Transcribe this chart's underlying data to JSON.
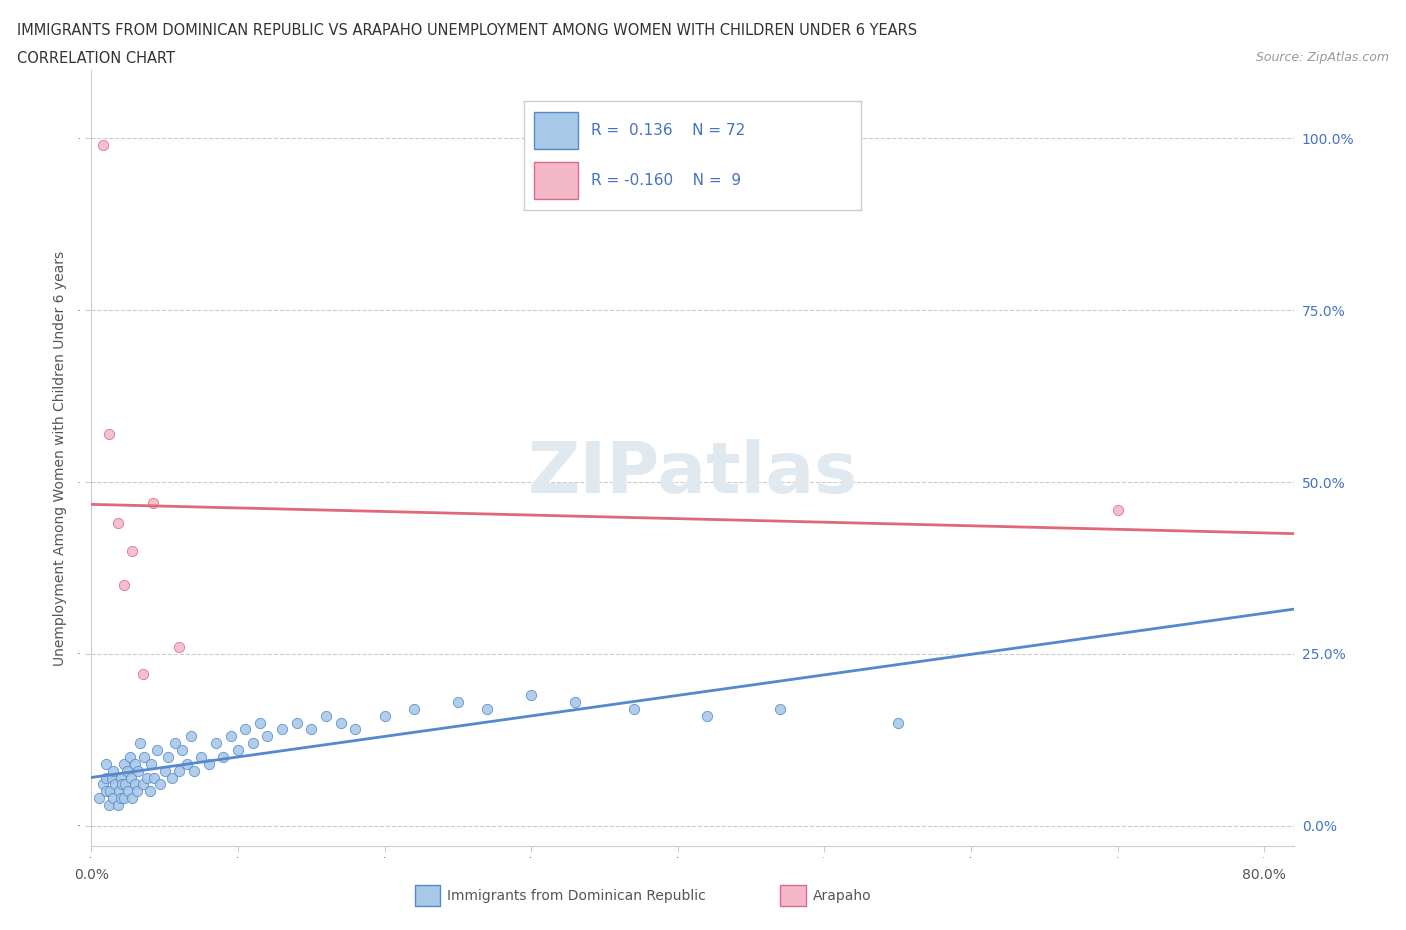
{
  "title_line1": "IMMIGRANTS FROM DOMINICAN REPUBLIC VS ARAPAHO UNEMPLOYMENT AMONG WOMEN WITH CHILDREN UNDER 6 YEARS",
  "title_line2": "CORRELATION CHART",
  "source_text": "Source: ZipAtlas.com",
  "ylabel": "Unemployment Among Women with Children Under 6 years",
  "xlim": [
    0.0,
    0.82
  ],
  "ylim": [
    -0.03,
    1.1
  ],
  "ytick_values": [
    0.0,
    0.25,
    0.5,
    0.75,
    1.0
  ],
  "watermark": "ZIPatlas",
  "blue_color": "#a8c8e8",
  "blue_dark": "#5588cc",
  "pink_color": "#f4b8c8",
  "pink_dark": "#e06888",
  "blue_line_color": "#5588cc",
  "pink_line_color": "#e06878",
  "r_blue": 0.136,
  "n_blue": 72,
  "r_pink": -0.16,
  "n_pink": 9,
  "blue_scatter_x": [
    0.005,
    0.008,
    0.01,
    0.01,
    0.01,
    0.012,
    0.013,
    0.014,
    0.015,
    0.015,
    0.016,
    0.018,
    0.019,
    0.02,
    0.02,
    0.021,
    0.022,
    0.022,
    0.023,
    0.024,
    0.025,
    0.026,
    0.027,
    0.028,
    0.03,
    0.03,
    0.031,
    0.032,
    0.033,
    0.035,
    0.036,
    0.038,
    0.04,
    0.041,
    0.043,
    0.045,
    0.047,
    0.05,
    0.052,
    0.055,
    0.057,
    0.06,
    0.062,
    0.065,
    0.068,
    0.07,
    0.075,
    0.08,
    0.085,
    0.09,
    0.095,
    0.1,
    0.105,
    0.11,
    0.115,
    0.12,
    0.13,
    0.14,
    0.15,
    0.16,
    0.17,
    0.18,
    0.2,
    0.22,
    0.25,
    0.27,
    0.3,
    0.33,
    0.37,
    0.42,
    0.47,
    0.55
  ],
  "blue_scatter_y": [
    0.04,
    0.06,
    0.05,
    0.07,
    0.09,
    0.03,
    0.05,
    0.07,
    0.04,
    0.08,
    0.06,
    0.03,
    0.05,
    0.04,
    0.07,
    0.06,
    0.09,
    0.04,
    0.06,
    0.08,
    0.05,
    0.1,
    0.07,
    0.04,
    0.06,
    0.09,
    0.05,
    0.08,
    0.12,
    0.06,
    0.1,
    0.07,
    0.05,
    0.09,
    0.07,
    0.11,
    0.06,
    0.08,
    0.1,
    0.07,
    0.12,
    0.08,
    0.11,
    0.09,
    0.13,
    0.08,
    0.1,
    0.09,
    0.12,
    0.1,
    0.13,
    0.11,
    0.14,
    0.12,
    0.15,
    0.13,
    0.14,
    0.15,
    0.14,
    0.16,
    0.15,
    0.14,
    0.16,
    0.17,
    0.18,
    0.17,
    0.19,
    0.18,
    0.17,
    0.16,
    0.17,
    0.15
  ],
  "pink_scatter_x": [
    0.008,
    0.012,
    0.018,
    0.022,
    0.028,
    0.035,
    0.042,
    0.7,
    0.06
  ],
  "pink_scatter_y": [
    0.99,
    0.57,
    0.44,
    0.35,
    0.4,
    0.22,
    0.47,
    0.46,
    0.26
  ]
}
